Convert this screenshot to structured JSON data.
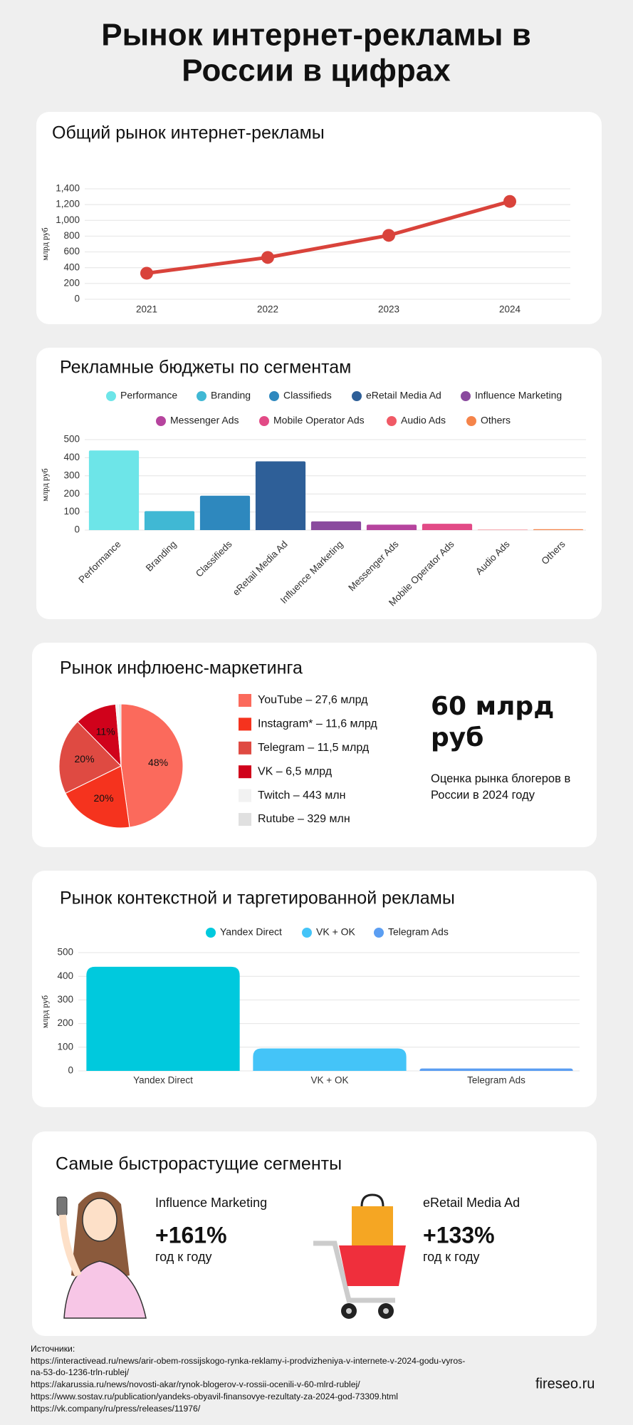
{
  "title": "Рынок интернет-рекламы в России в цифрах",
  "chart_data": [
    {
      "type": "line",
      "title": "Общий рынок интернет-рекламы",
      "y_label": "млрд руб",
      "categories": [
        "2021",
        "2022",
        "2023",
        "2024"
      ],
      "values": [
        330,
        530,
        810,
        1240
      ],
      "color": "#d9433b",
      "ylim": [
        0,
        1400
      ],
      "yticks": [
        0,
        200,
        400,
        600,
        800,
        {
          "value": 1000,
          "label": "1,000"
        },
        {
          "value": 1200,
          "label": "1,200"
        },
        {
          "value": 1400,
          "label": "1,400"
        }
      ],
      "grid": true
    },
    {
      "type": "bar",
      "title": "Рекламные бюджеты по сегментам",
      "y_label": "млрд руб",
      "categories": [
        "Performance",
        "Branding",
        "Classifieds",
        "eRetail Media Ad",
        "Influence Marketing",
        "Messenger Ads",
        "Mobile Operator Ads",
        "Audio Ads",
        "Others"
      ],
      "values": [
        440,
        105,
        190,
        380,
        48,
        30,
        35,
        2,
        5
      ],
      "colors": [
        "#6de5e8",
        "#40b8d4",
        "#2e88be",
        "#2e5f98",
        "#8a4a9e",
        "#b6449e",
        "#e24a86",
        "#f05a66",
        "#f5844a"
      ],
      "ylim": [
        0,
        500
      ],
      "yticks": [
        0,
        100,
        200,
        300,
        400,
        500
      ],
      "grid": true,
      "legend": true
    },
    {
      "type": "pie",
      "title": "Рынок инфлюенс-маркетинга",
      "categories": [
        "YouTube – 27,6 млрд",
        "Instagram* – 11,6 млрд",
        "Telegram – 11,5 млрд",
        "VK – 6,5 млрд",
        "Twitch – 443 млн",
        "Rutube – 329 млн"
      ],
      "values": [
        48,
        20,
        20,
        11,
        0.8,
        0.6
      ],
      "value_labels": [
        "48%",
        "20%",
        "20%",
        "11%",
        null,
        null
      ],
      "colors": [
        "#fb6a5c",
        "#f5331e",
        "#df4a42",
        "#d0021b",
        "#f2f2f2",
        "#e0e0e0"
      ],
      "legend": true
    },
    {
      "type": "bar",
      "title": "Рынок контекстной и таргетированной рекламы",
      "y_label": "млрд руб",
      "categories": [
        "Yandex Direct",
        "VK + OK",
        "Telegram Ads"
      ],
      "values": [
        440,
        95,
        10
      ],
      "colors": [
        "#00c9dd",
        "#44c4f8",
        "#5b9ef2"
      ],
      "ylim": [
        0,
        500
      ],
      "yticks": [
        0,
        100,
        200,
        300,
        400,
        500
      ],
      "grid": true,
      "legend": true
    }
  ],
  "influencer_market": {
    "value": "60 млрд руб",
    "caption": "Оценка рынка блогеров в России в 2024 году"
  },
  "fastest_growing": {
    "title": "Самые быстрорастущие сегменты",
    "items": [
      {
        "name": "Influence Marketing",
        "growth": "+161%",
        "period": "год к году"
      },
      {
        "name": "eRetail Media Ad",
        "growth": "+133%",
        "period": "год к году"
      }
    ]
  },
  "sources": {
    "label": "Источники:",
    "links": [
      "https://interactivead.ru/news/arir-obem-rossijskogo-rynka-reklamy-i-prodvizheniya-v-internete-v-2024-godu-vyros-na-53-do-1236-trln-rublej/",
      "https://akarussia.ru/news/novosti-akar/rynok-blogerov-v-rossii-ocenili-v-60-mlrd-rublej/",
      "https://www.sostav.ru/publication/yandeks-obyavil-finansovye-rezultaty-za-2024-god-73309.html",
      "https://vk.company/ru/press/releases/11976/"
    ]
  },
  "brand": "fireseo.ru"
}
